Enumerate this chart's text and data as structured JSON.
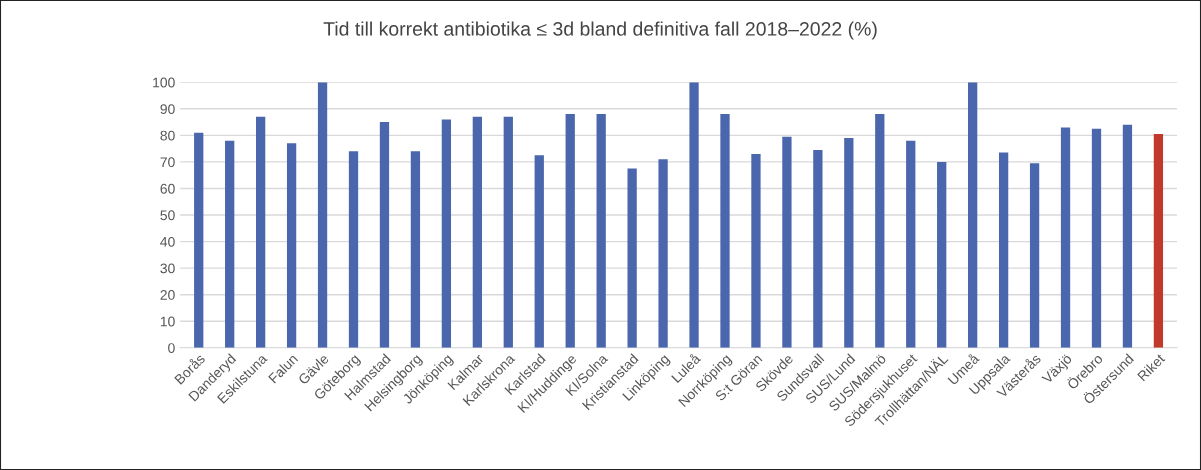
{
  "chart_data": {
    "type": "bar",
    "title": "Tid till korrekt antibiotika ≤ 3d bland definitiva fall 2018–2022 (%)",
    "categories": [
      "Borås",
      "Danderyd",
      "Eskilstuna",
      "Falun",
      "Gävle",
      "Göteborg",
      "Halmstad",
      "Helsingborg",
      "Jönköping",
      "Kalmar",
      "Karlskrona",
      "Karlstad",
      "KI/Huddinge",
      "KI/Solna",
      "Kristianstad",
      "Linköping",
      "Luleå",
      "Norrköping",
      "S:t Göran",
      "Skövde",
      "Sundsvall",
      "SUS/Lund",
      "SUS/Malmö",
      "Södersjukhuset",
      "Trollhättan/NÄL",
      "Umeå",
      "Uppsala",
      "Västerås",
      "Växjö",
      "Örebro",
      "Östersund",
      "Riket"
    ],
    "values": [
      81,
      78,
      87,
      77,
      100,
      74,
      85,
      74,
      86,
      87,
      87,
      72.5,
      88,
      88,
      67.5,
      71,
      100,
      88,
      73,
      79.5,
      74.5,
      79,
      88,
      78,
      70,
      100,
      73.5,
      69.5,
      83,
      82.5,
      84,
      80.5
    ],
    "colors": [
      "#4a66ac",
      "#4a66ac",
      "#4a66ac",
      "#4a66ac",
      "#4a66ac",
      "#4a66ac",
      "#4a66ac",
      "#4a66ac",
      "#4a66ac",
      "#4a66ac",
      "#4a66ac",
      "#4a66ac",
      "#4a66ac",
      "#4a66ac",
      "#4a66ac",
      "#4a66ac",
      "#4a66ac",
      "#4a66ac",
      "#4a66ac",
      "#4a66ac",
      "#4a66ac",
      "#4a66ac",
      "#4a66ac",
      "#4a66ac",
      "#4a66ac",
      "#4a66ac",
      "#4a66ac",
      "#4a66ac",
      "#4a66ac",
      "#4a66ac",
      "#4a66ac",
      "#c0392b"
    ],
    "ylim": [
      0,
      100
    ],
    "yticks": [
      0,
      10,
      20,
      30,
      40,
      50,
      60,
      70,
      80,
      90,
      100
    ],
    "grid": "y",
    "legend": false
  }
}
